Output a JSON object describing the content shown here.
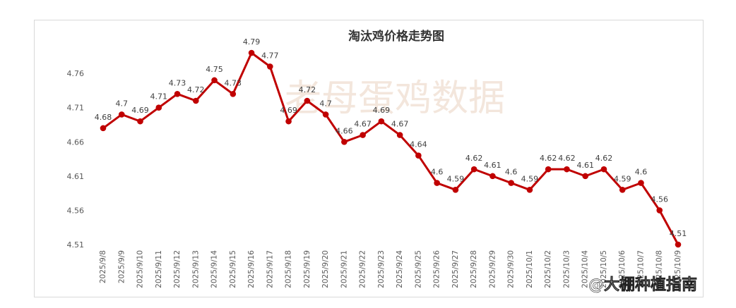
{
  "chart_data": {
    "type": "line",
    "title": "淘汰鸡价格走势图",
    "watermark": "老母蛋鸡数据",
    "corner_watermark": "@大棚种植指南",
    "xlabel": "",
    "ylabel": "",
    "ylim": [
      4.51,
      4.79
    ],
    "yticks": [
      4.51,
      4.56,
      4.61,
      4.66,
      4.71,
      4.76
    ],
    "grid": false,
    "line_color": "#c00000",
    "categories": [
      "2025/9/8",
      "2025/9/9",
      "2025/9/10",
      "2025/9/11",
      "2025/9/12",
      "2025/9/13",
      "2025/9/14",
      "2025/9/15",
      "2025/9/16",
      "2025/9/17",
      "2025/9/18",
      "2025/9/19",
      "2025/9/20",
      "2025/9/21",
      "2025/9/22",
      "2025/9/23",
      "2025/9/24",
      "2025/9/25",
      "2025/9/26",
      "2025/9/27",
      "2025/9/28",
      "2025/9/29",
      "2025/9/30",
      "2025/10/1",
      "2025/10/2",
      "2025/10/3",
      "2025/10/4",
      "2025/10/5",
      "2025/10/6",
      "2025/10/7",
      "2025/10/8",
      "2025/10/9"
    ],
    "values": [
      4.68,
      4.7,
      4.69,
      4.71,
      4.73,
      4.72,
      4.75,
      4.73,
      4.79,
      4.77,
      4.69,
      4.72,
      4.7,
      4.66,
      4.67,
      4.69,
      4.67,
      4.64,
      4.6,
      4.59,
      4.62,
      4.61,
      4.6,
      4.59,
      4.62,
      4.62,
      4.61,
      4.62,
      4.59,
      4.6,
      4.56,
      4.51
    ],
    "data_labels": [
      "4.68",
      "4.7",
      "4.69",
      "4.71",
      "4.73",
      "4.72",
      "4.75",
      "4.73",
      "4.79",
      "4.77",
      "4.69",
      "4.72",
      "4.7",
      "4.66",
      "4.67",
      "4.69",
      "4.67",
      "4.64",
      "4.6",
      "4.59",
      "4.62",
      "4.61",
      "4.6",
      "4.59",
      "4.62",
      "4.62",
      "4.61",
      "4.62",
      "4.59",
      "4.6",
      "4.56",
      "4.51"
    ]
  }
}
